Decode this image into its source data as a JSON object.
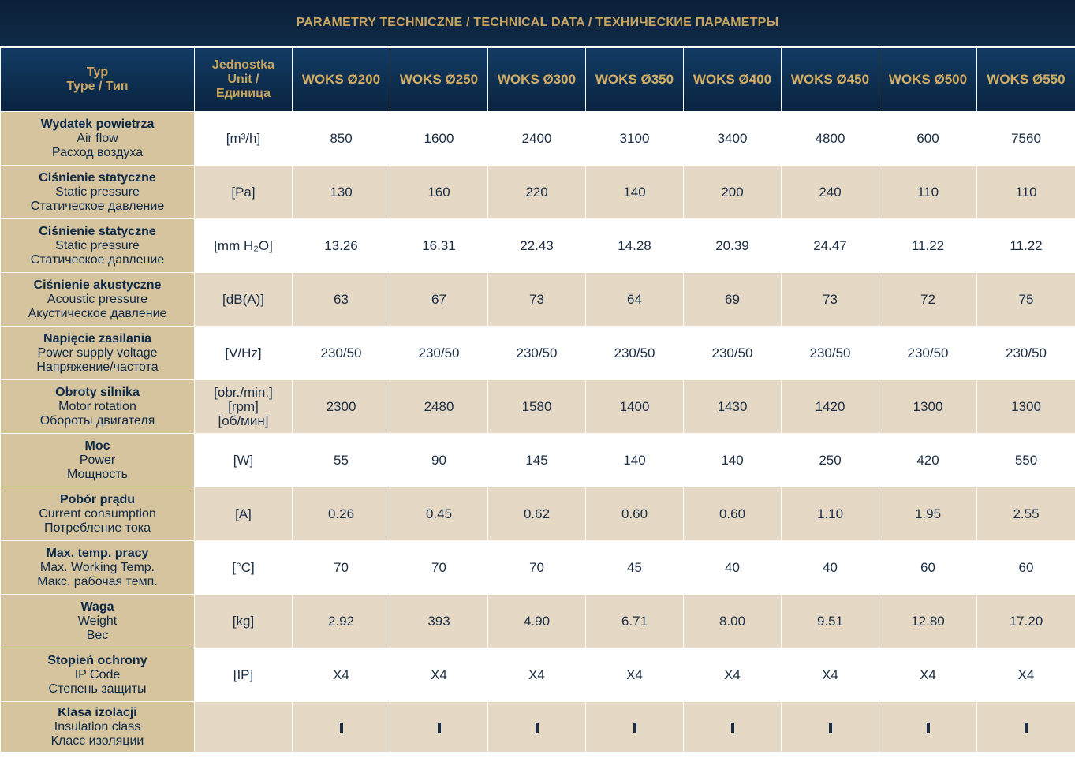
{
  "title": "PARAMETRY TECHNICZNE / TECHNICAL DATA / ТЕХНИЧЕСКИЕ ПАРАМЕТРЫ",
  "header": {
    "type_pl": "Typ",
    "type_en_ru": "Type / Тип",
    "unit_pl": "Jednostka",
    "unit_en": "Unit /",
    "unit_ru": "Единица",
    "models": [
      "WOKS Ø200",
      "WOKS Ø250",
      "WOKS Ø300",
      "WOKS Ø350",
      "WOKS Ø400",
      "WOKS Ø450",
      "WOKS Ø500",
      "WOKS Ø550"
    ]
  },
  "rows": [
    {
      "pl": "Wydatek powietrza",
      "en": "Air flow",
      "ru": "Расход воздуха",
      "unit": "[m³/h]",
      "values": [
        "850",
        "1600",
        "2400",
        "3100",
        "3400",
        "4800",
        "600",
        "7560"
      ]
    },
    {
      "pl": "Ciśnienie statyczne",
      "en": "Static pressure",
      "ru": "Статическое давление",
      "unit": "[Pa]",
      "values": [
        "130",
        "160",
        "220",
        "140",
        "200",
        "240",
        "110",
        "110"
      ]
    },
    {
      "pl": "Ciśnienie statyczne",
      "en": "Static pressure",
      "ru": "Статическое давление",
      "unit": "[mm H₂O]",
      "values": [
        "13.26",
        "16.31",
        "22.43",
        "14.28",
        "20.39",
        "24.47",
        "11.22",
        "11.22"
      ]
    },
    {
      "pl": "Ciśnienie akustyczne",
      "en": "Acoustic pressure",
      "ru": "Акустическое давление",
      "unit": "[dB(A)]",
      "values": [
        "63",
        "67",
        "73",
        "64",
        "69",
        "73",
        "72",
        "75"
      ]
    },
    {
      "pl": "Napięcie zasilania",
      "en": "Power supply voltage",
      "ru": "Напряжение/частота",
      "unit": "[V/Hz]",
      "values": [
        "230/50",
        "230/50",
        "230/50",
        "230/50",
        "230/50",
        "230/50",
        "230/50",
        "230/50"
      ]
    },
    {
      "pl": "Obroty silnika",
      "en": "Motor rotation",
      "ru": "Обороты двигателя",
      "unit": "[obr./min.]",
      "unit2": "[rpm]",
      "unit3": "[об/мин]",
      "values": [
        "2300",
        "2480",
        "1580",
        "1400",
        "1430",
        "1420",
        "1300",
        "1300"
      ]
    },
    {
      "pl": "Moc",
      "en": "Power",
      "ru": "Мощность",
      "unit": "[W]",
      "values": [
        "55",
        "90",
        "145",
        "140",
        "140",
        "250",
        "420",
        "550"
      ]
    },
    {
      "pl": "Pobór prądu",
      "en": "Current consumption",
      "ru": "Потребление тока",
      "unit": "[A]",
      "values": [
        "0.26",
        "0.45",
        "0.62",
        "0.60",
        "0.60",
        "1.10",
        "1.95",
        "2.55"
      ]
    },
    {
      "pl": "Max. temp. pracy",
      "en": "Max. Working Temp.",
      "ru": "Макс. рабочая темп.",
      "unit": "[°C]",
      "values": [
        "70",
        "70",
        "70",
        "45",
        "40",
        "40",
        "60",
        "60"
      ]
    },
    {
      "pl": "Waga",
      "en": "Weight",
      "ru": "Вес",
      "unit": "[kg]",
      "values": [
        "2.92",
        "393",
        "4.90",
        "6.71",
        "8.00",
        "9.51",
        "12.80",
        "17.20"
      ]
    },
    {
      "pl": "Stopień ochrony",
      "en": "IP Code",
      "ru": "Степень защиты",
      "unit": "[IP]",
      "values": [
        "X4",
        "X4",
        "X4",
        "X4",
        "X4",
        "X4",
        "X4",
        "X4"
      ]
    },
    {
      "pl": "Klasa izolacji",
      "en": "Insulation class",
      "ru": "Класс изоляции",
      "unit": "",
      "values": [
        "I",
        "I",
        "I",
        "I",
        "I",
        "I",
        "I",
        "I"
      ]
    }
  ]
}
